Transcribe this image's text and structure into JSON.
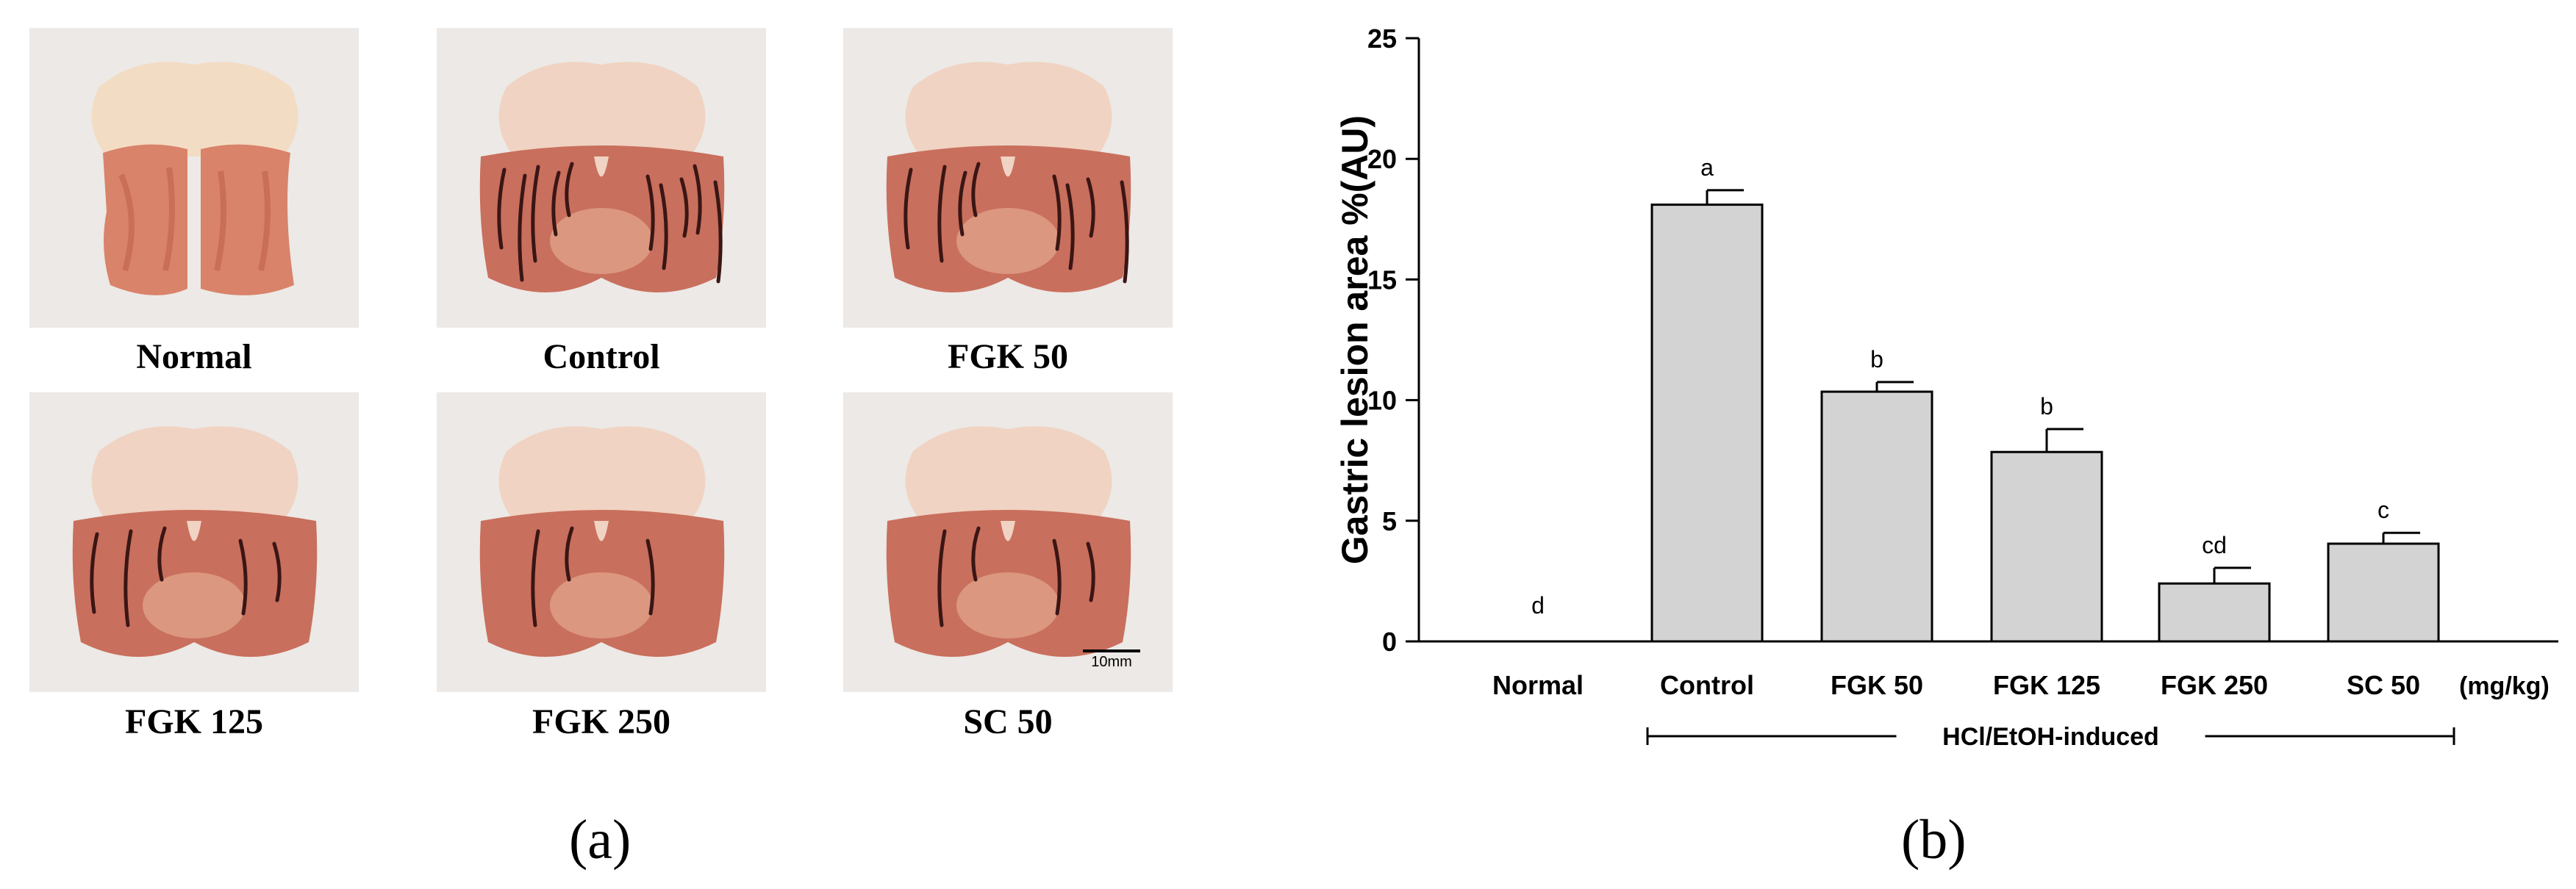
{
  "panel_a": {
    "label": "(a)",
    "photos": [
      {
        "caption": "Normal",
        "lesions": 0
      },
      {
        "caption": "Control",
        "lesions": 10
      },
      {
        "caption": "FGK 50",
        "lesions": 8
      },
      {
        "caption": "FGK 125",
        "lesions": 5
      },
      {
        "caption": "FGK 250",
        "lesions": 3
      },
      {
        "caption": "SC 50",
        "lesions": 4
      }
    ],
    "scale_bar_label": "10mm"
  },
  "panel_b": {
    "label": "(b)",
    "group_bracket_label": "HCl/EtOH-induced",
    "unit_label": "(mg/kg)"
  },
  "chart_data": {
    "type": "bar",
    "categories": [
      "Normal",
      "Control",
      "FGK 50",
      "FGK 125",
      "FGK 250",
      "SC 50"
    ],
    "values": [
      0,
      18.1,
      10.35,
      7.85,
      2.4,
      4.05
    ],
    "errors": [
      0,
      0.6,
      0.4,
      0.95,
      0.65,
      0.45
    ],
    "significance": [
      "d",
      "a",
      "b",
      "b",
      "cd",
      "c"
    ],
    "ylabel": "Gastric lesion area %(AU)",
    "xlabel": "",
    "ylim": [
      0,
      25
    ],
    "yticks": [
      0,
      5,
      10,
      15,
      20,
      25
    ],
    "bar_color": "#d3d3d3",
    "grid": false
  }
}
